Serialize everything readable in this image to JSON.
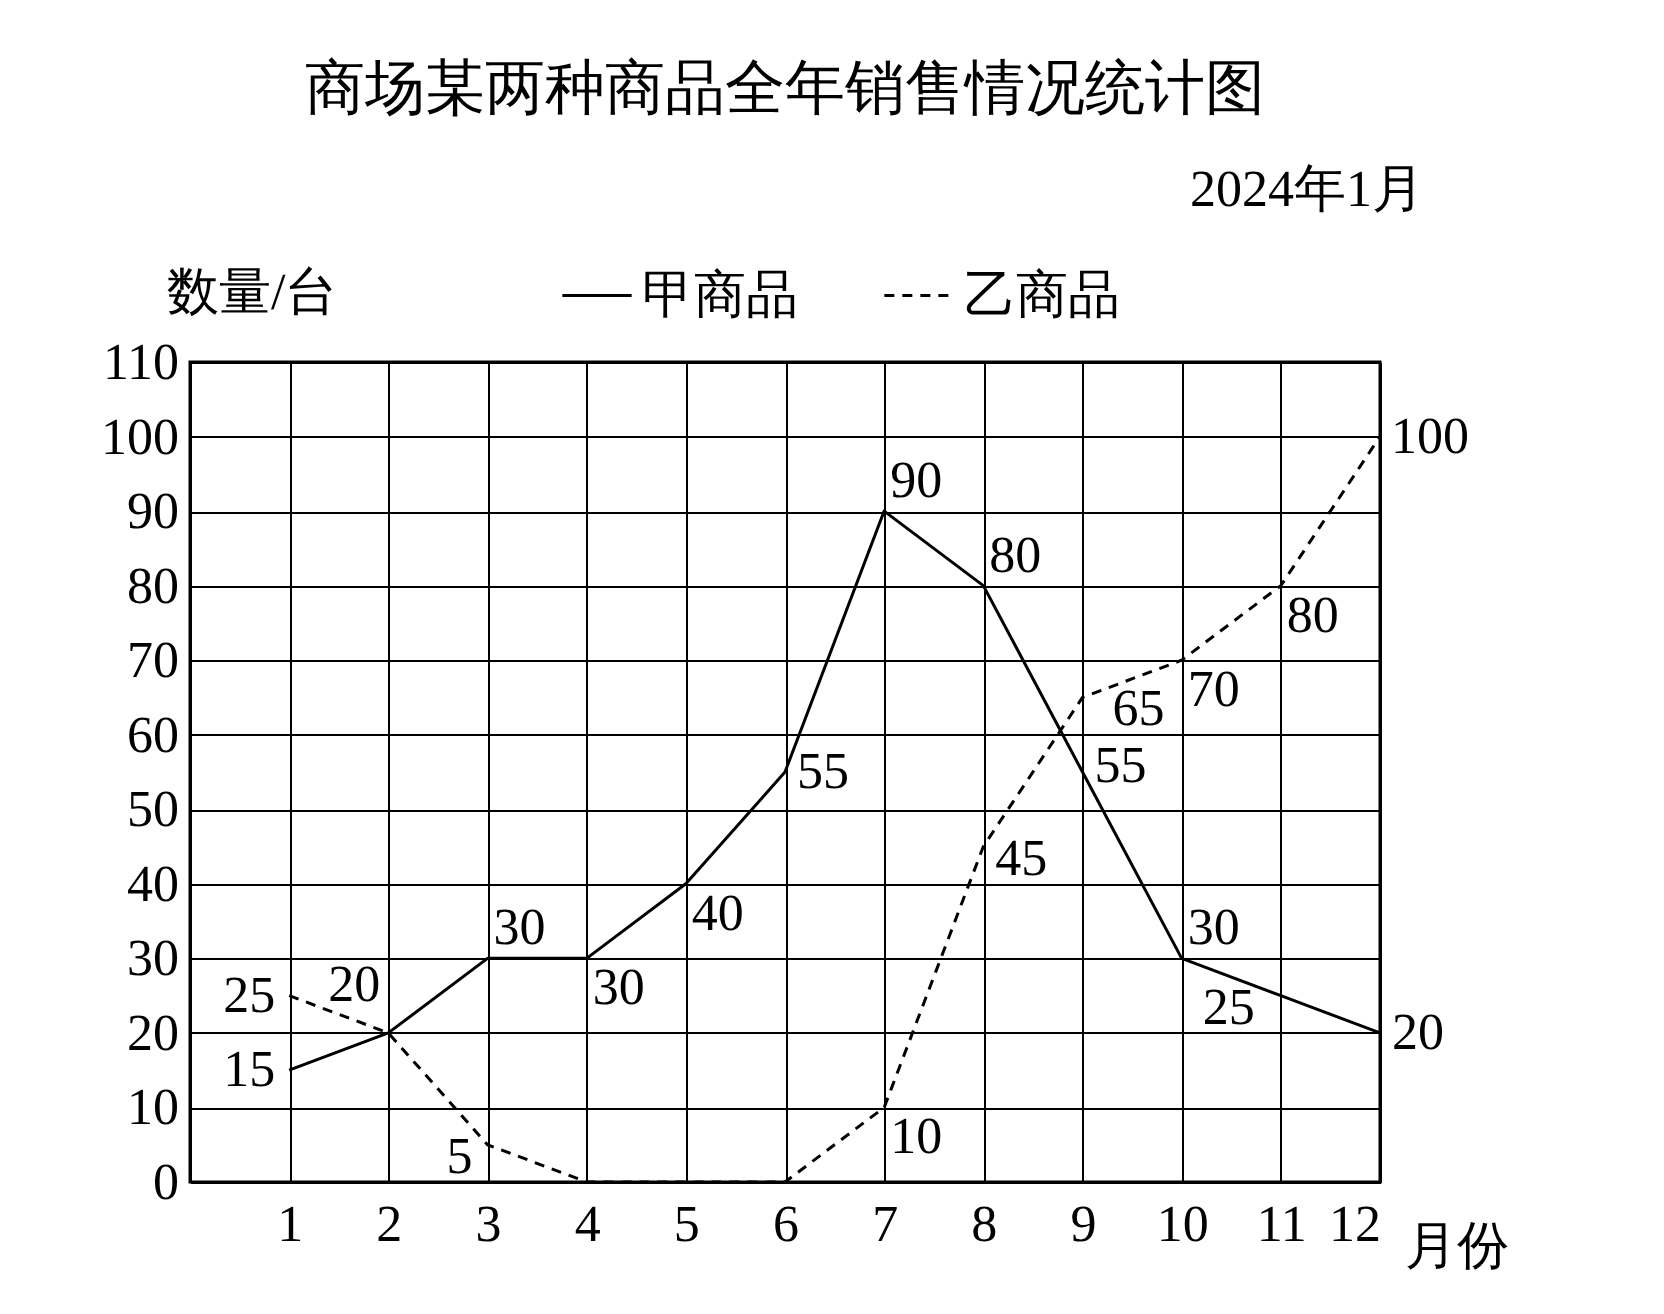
{
  "chart_data": {
    "type": "line",
    "title": "商场某两种商品全年销售情况统计图",
    "subtitle": "2024年1月",
    "xlabel": "月份",
    "ylabel": "数量/台",
    "x": [
      1,
      2,
      3,
      4,
      5,
      6,
      7,
      8,
      9,
      10,
      11,
      12
    ],
    "xlim": [
      0,
      12
    ],
    "xticks": [
      1,
      2,
      3,
      4,
      5,
      6,
      7,
      8,
      9,
      10,
      11,
      12
    ],
    "ylim": [
      0,
      110
    ],
    "yticks": [
      0,
      10,
      20,
      30,
      40,
      50,
      60,
      70,
      80,
      90,
      100,
      110
    ],
    "grid": true,
    "legend": "top",
    "series": [
      {
        "name": "甲商品",
        "color": "#000000",
        "line_style": "solid",
        "values": [
          15,
          20,
          30,
          30,
          40,
          55,
          90,
          80,
          55,
          30,
          25,
          20
        ],
        "value_labels": [
          "15",
          "20",
          "30",
          "30",
          "40",
          "55",
          "90",
          "80",
          "55",
          "30",
          "25",
          "20"
        ]
      },
      {
        "name": "乙商品",
        "color": "#000000",
        "line_style": "dashed",
        "values": [
          25,
          20,
          5,
          0,
          0,
          0,
          10,
          45,
          65,
          70,
          80,
          100
        ],
        "value_labels": [
          "25",
          null,
          "5",
          null,
          null,
          null,
          "10",
          "45",
          "65",
          "70",
          "80",
          "100"
        ]
      }
    ]
  }
}
